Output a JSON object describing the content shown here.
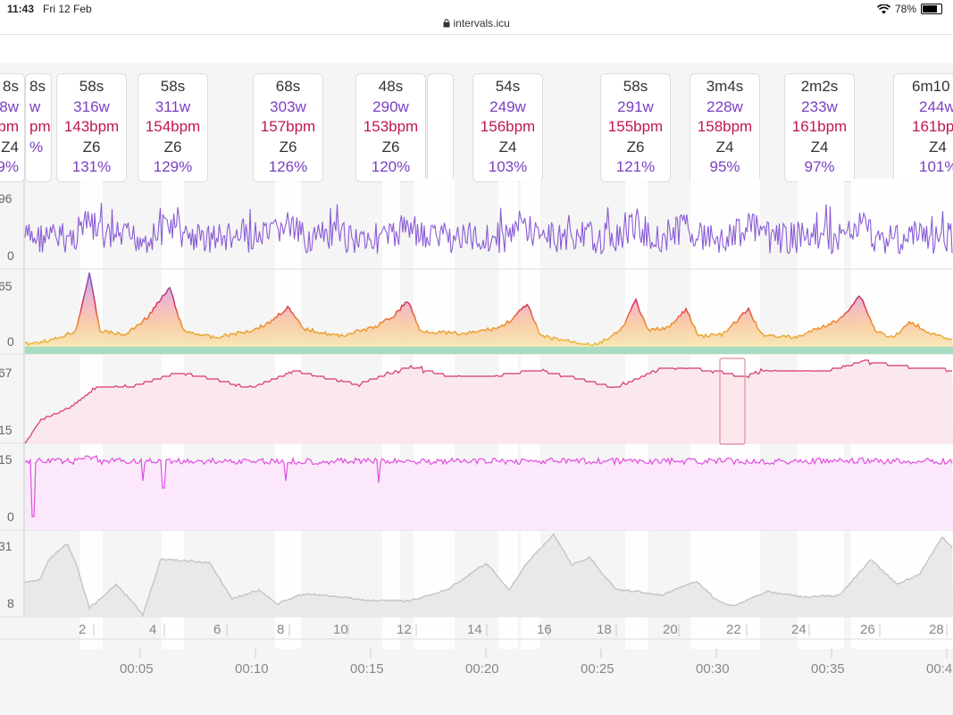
{
  "status": {
    "time": "11:43",
    "date": "Fri 12 Feb",
    "battery": "78%",
    "battery_fraction": 0.78
  },
  "browser": {
    "url": "intervals.icu"
  },
  "intervals": [
    {
      "duration": "8s",
      "watts": "8w",
      "bpm": "pm",
      "zone": "Z4",
      "pct": "9%"
    },
    {
      "duration": "8s",
      "watts": "w",
      "bpm": "pm",
      "zone": "",
      "pct": "%"
    },
    {
      "duration": "58s",
      "watts": "316w",
      "bpm": "143bpm",
      "zone": "Z6",
      "pct": "131%"
    },
    {
      "duration": "58s",
      "watts": "311w",
      "bpm": "154bpm",
      "zone": "Z6",
      "pct": "129%"
    },
    {
      "duration": "68s",
      "watts": "303w",
      "bpm": "157bpm",
      "zone": "Z6",
      "pct": "126%"
    },
    {
      "duration": "48s",
      "watts": "290w",
      "bpm": "153bpm",
      "zone": "Z6",
      "pct": "120%"
    },
    {
      "duration": "54s",
      "watts": "249w",
      "bpm": "156bpm",
      "zone": "Z4",
      "pct": "103%"
    },
    {
      "duration": "58s",
      "watts": "291w",
      "bpm": "155bpm",
      "zone": "Z6",
      "pct": "121%"
    },
    {
      "duration": "3m4s",
      "watts": "228w",
      "bpm": "158bpm",
      "zone": "Z4",
      "pct": "95%"
    },
    {
      "duration": "2m2s",
      "watts": "233w",
      "bpm": "161bpm",
      "zone": "Z4",
      "pct": "97%"
    },
    {
      "duration": "6m10",
      "watts": "244w",
      "bpm": "161bp",
      "zone": "Z4",
      "pct": "101%"
    }
  ],
  "y_axes": {
    "power": {
      "max": "96",
      "min": "0"
    },
    "wbal": {
      "max": "65",
      "min": "0"
    },
    "hr": {
      "max": "67",
      "min": "15"
    },
    "cadence": {
      "max": "15",
      "min": "0"
    },
    "altitude": {
      "max": "31",
      "min": "8"
    }
  },
  "x_axis": {
    "distance_ticks": [
      "2",
      "4",
      "6",
      "8",
      "10",
      "12",
      "14",
      "16",
      "18",
      "20",
      "22",
      "24",
      "26",
      "28"
    ],
    "time_ticks": [
      "00:05",
      "00:10",
      "00:15",
      "00:20",
      "00:25",
      "00:30",
      "00:35",
      "00:4"
    ]
  },
  "colors": {
    "power": "#8a5cd6",
    "hr": "#d6386a",
    "cadence": "#e14de0",
    "altitude": "#c4c4c4"
  }
}
